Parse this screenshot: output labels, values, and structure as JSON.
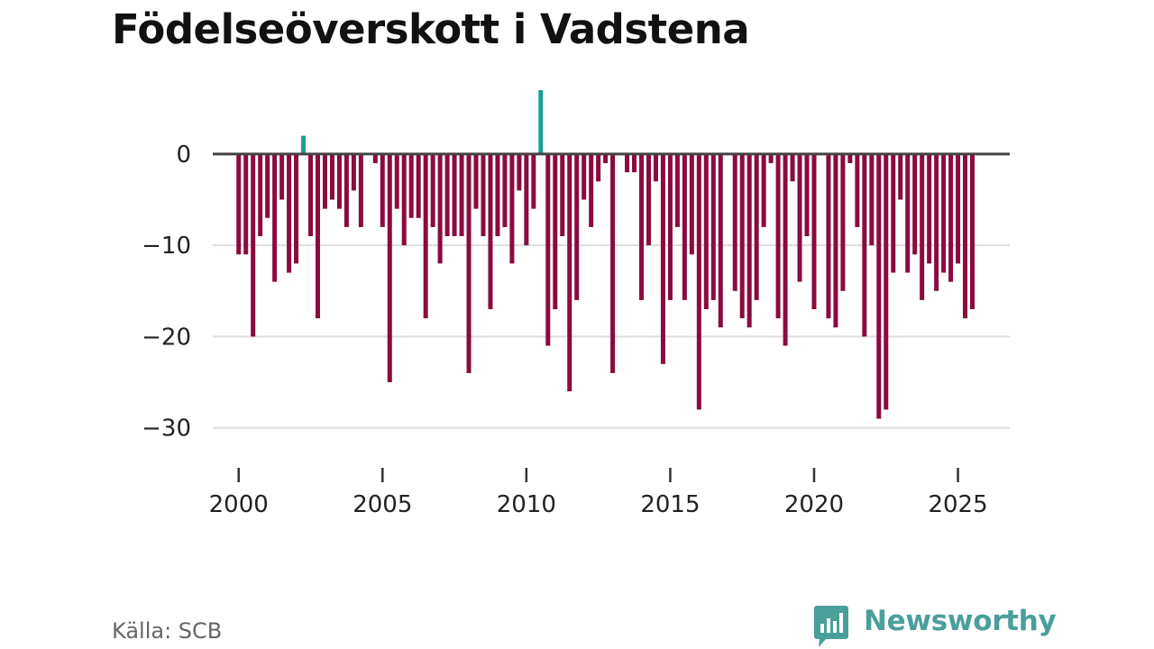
{
  "chart_data": {
    "type": "bar",
    "title": "Födelseöverskott i Vadstena",
    "xlabel": "",
    "ylabel": "",
    "ylim": [
      -33,
      7
    ],
    "xlim": [
      1999.1,
      2026.8
    ],
    "x_ticks": [
      2000,
      2005,
      2010,
      2015,
      2020,
      2025
    ],
    "y_ticks": [
      0,
      -10,
      -20,
      -30
    ],
    "y_tick_labels": [
      "0",
      "−10",
      "−20",
      "−30"
    ],
    "grid": "horizontal",
    "colors": {
      "positive": "#1a9f96",
      "negative": "#8b0a3f",
      "zero_line": "#444444",
      "grid": "#dddddd"
    },
    "start_year": 2000,
    "values": [
      -11,
      -11,
      -20,
      -9,
      -7,
      -14,
      -5,
      -13,
      -12,
      2,
      -9,
      -18,
      -6,
      -5,
      -6,
      -8,
      -4,
      -8,
      0,
      -1,
      -8,
      -25,
      -6,
      -10,
      -7,
      -7,
      -18,
      -8,
      -12,
      -9,
      -9,
      -9,
      -24,
      -6,
      -9,
      -17,
      -9,
      -8,
      -12,
      -4,
      -10,
      -6,
      7,
      -21,
      -17,
      -9,
      -26,
      -16,
      -5,
      -8,
      -3,
      -1,
      -24,
      0,
      -2,
      -2,
      -16,
      -10,
      -3,
      -23,
      -16,
      -8,
      -16,
      -11,
      -28,
      -17,
      -16,
      -19,
      0,
      -15,
      -18,
      -19,
      -16,
      -8,
      -1,
      -18,
      -21,
      -3,
      -14,
      -9,
      -17,
      0,
      -18,
      -19,
      -15,
      -1,
      -8,
      -20,
      -10,
      -29,
      -28,
      -13,
      -5,
      -13,
      -11,
      -16,
      -12,
      -15,
      -13,
      -14,
      -12,
      -18,
      -17
    ]
  },
  "footer": {
    "source": "Källa: SCB",
    "brand": "Newsworthy"
  }
}
